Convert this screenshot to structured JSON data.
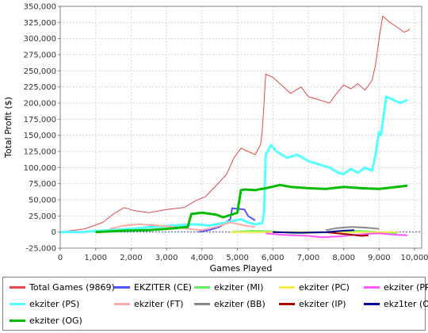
{
  "chart_data": {
    "type": "line",
    "xlabel": "Games Played",
    "ylabel": "Total Profit ($)",
    "xlim": [
      0,
      10200
    ],
    "ylim": [
      -25000,
      350000
    ],
    "xticks": [
      "0",
      "1,000",
      "2,000",
      "3,000",
      "4,000",
      "5,000",
      "6,000",
      "7,000",
      "8,000",
      "9,000",
      "10,000"
    ],
    "yticks": [
      "-25,000",
      "0",
      "25,000",
      "50,000",
      "75,000",
      "100,000",
      "125,000",
      "150,000",
      "175,000",
      "200,000",
      "225,000",
      "250,000",
      "275,000",
      "300,000",
      "325,000",
      "350,000"
    ],
    "grid": true,
    "legend_position": "bottom",
    "series": [
      {
        "name": "Total Games (9869)",
        "color": "#e04a4a",
        "width": 1,
        "x": [
          0,
          700,
          1200,
          1500,
          1800,
          2100,
          2500,
          3000,
          3500,
          3800,
          4100,
          4400,
          4700,
          4900,
          5100,
          5300,
          5500,
          5650,
          5700,
          5750,
          5800,
          6000,
          6200,
          6500,
          6800,
          7000,
          7300,
          7600,
          7800,
          8000,
          8200,
          8400,
          8600,
          8800,
          8900,
          8950,
          9000,
          9100,
          9300,
          9500,
          9700,
          9800,
          9869
        ],
        "y": [
          0,
          5000,
          15000,
          28000,
          38000,
          33000,
          30000,
          35000,
          38000,
          48000,
          55000,
          72000,
          90000,
          115000,
          130000,
          125000,
          120000,
          135000,
          155000,
          200000,
          245000,
          240000,
          230000,
          215000,
          225000,
          210000,
          205000,
          200000,
          215000,
          228000,
          222000,
          230000,
          220000,
          235000,
          260000,
          280000,
          300000,
          335000,
          325000,
          318000,
          310000,
          312000,
          315000
        ]
      },
      {
        "name": "EKZITER (CE)",
        "color": "#5555ff",
        "width": 2,
        "x": [
          3900,
          4200,
          4500,
          4800,
          4850,
          5200,
          5300,
          5500
        ],
        "y": [
          0,
          3000,
          8000,
          20000,
          37000,
          35000,
          25000,
          18000
        ]
      },
      {
        "name": "ekziter (MI)",
        "color": "#66ee66",
        "width": 2,
        "x": [
          4800,
          5400,
          6000,
          6600,
          7200,
          7800,
          8400,
          9000,
          9500
        ],
        "y": [
          0,
          2000,
          1000,
          -2000,
          -1000,
          0,
          2000,
          0,
          -2000
        ]
      },
      {
        "name": "ekziter (PC)",
        "color": "#eeee44",
        "width": 2,
        "x": [
          4800,
          6000,
          7200,
          8400,
          9500
        ],
        "y": [
          0,
          0,
          0,
          0,
          0
        ]
      },
      {
        "name": "ekziter (PR)",
        "color": "#ff55ff",
        "width": 2,
        "x": [
          5800,
          6200,
          6600,
          7000,
          7400,
          7800,
          8200,
          8600,
          9000,
          9400,
          9800
        ],
        "y": [
          -2000,
          -4000,
          -5000,
          -6000,
          -8000,
          -7000,
          -5000,
          -3000,
          -2000,
          -4000,
          -5000
        ]
      },
      {
        "name": "ekziter (PS)",
        "color": "#55ffff",
        "width": 3,
        "x": [
          0,
          600,
          1400,
          2000,
          2600,
          3200,
          3800,
          4200,
          4600,
          4950,
          5100,
          5300,
          5500,
          5700,
          5750,
          5800,
          5950,
          6100,
          6400,
          6700,
          7000,
          7300,
          7600,
          7850,
          8000,
          8200,
          8400,
          8600,
          8800,
          8900,
          8950,
          9000,
          9050,
          9200,
          9400,
          9600,
          9800
        ],
        "y": [
          0,
          0,
          3000,
          5000,
          8000,
          10000,
          12000,
          10000,
          14000,
          18000,
          20000,
          15000,
          12000,
          14000,
          30000,
          120000,
          135000,
          125000,
          115000,
          120000,
          110000,
          105000,
          100000,
          92000,
          90000,
          98000,
          92000,
          100000,
          95000,
          120000,
          140000,
          155000,
          150000,
          210000,
          205000,
          200000,
          205000
        ]
      },
      {
        "name": "ekziter (FT)",
        "color": "#ffaaaa",
        "width": 2,
        "x": [
          1400,
          1800,
          2200,
          2800,
          3200,
          3600,
          4000,
          4400,
          4800,
          5200,
          5500
        ],
        "y": [
          5000,
          10000,
          12000,
          10000,
          8000,
          5000,
          3000,
          8000,
          15000,
          10000,
          8000
        ]
      },
      {
        "name": "ekziter (BB)",
        "color": "#888888",
        "width": 2,
        "x": [
          7500,
          7800,
          8200,
          8600,
          9000
        ],
        "y": [
          3000,
          6000,
          8000,
          7000,
          5000
        ]
      },
      {
        "name": "ekziter (IP)",
        "color": "#aa0000",
        "width": 2,
        "x": [
          7500,
          7800,
          8200,
          8500,
          8700
        ],
        "y": [
          0,
          -2000,
          -4000,
          -6000,
          -5000
        ]
      },
      {
        "name": "ekz1ter (OG)",
        "color": "#000099",
        "width": 2,
        "x": [
          6000,
          6800,
          7500,
          8000,
          8300
        ],
        "y": [
          0,
          -1000,
          0,
          2000,
          3000
        ]
      },
      {
        "name": "ekziter (OG)",
        "color": "#00bb00",
        "width": 3,
        "x": [
          1000,
          1800,
          2500,
          3000,
          3600,
          3700,
          4000,
          4400,
          4600,
          5000,
          5100,
          5200,
          5500,
          5800,
          6200,
          6500,
          7000,
          7500,
          8000,
          8500,
          9000,
          9500,
          9800
        ],
        "y": [
          0,
          2000,
          3000,
          5000,
          8000,
          28000,
          30000,
          27000,
          23000,
          30000,
          65000,
          66000,
          65000,
          68000,
          73000,
          70000,
          68000,
          67000,
          70000,
          68000,
          67000,
          70000,
          72000
        ]
      }
    ]
  }
}
